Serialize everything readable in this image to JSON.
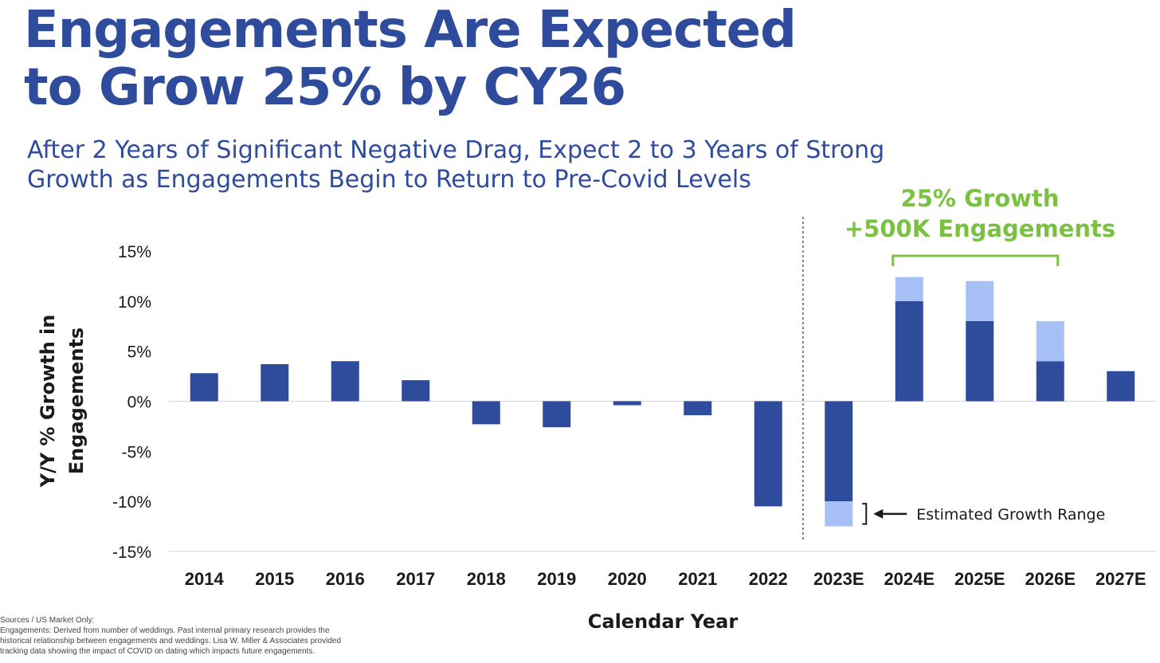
{
  "title_lines": [
    "Engagements Are Expected",
    "to Grow 25% by CY26"
  ],
  "subtitle_lines": [
    "After 2 Years of Significant Negative Drag, Expect 2 to 3 Years of Strong",
    "Growth as Engagements Begin to Return to Pre-Covid Levels"
  ],
  "callout": {
    "line1": "25% Growth",
    "line2": "+500K Engagements"
  },
  "footnote": {
    "line1": "Sources / US Market Only:",
    "line2": "Engagements: Derived from number of weddings. Past internal primary research provides the",
    "line3": "historical relationship between engagements and weddings. Lisa W. Miller & Associates provided",
    "line4": "tracking data showing the impact of COVID on dating which impacts future engagements."
  },
  "colors": {
    "title": "#2e4b9c",
    "bar": "#2e4b9c",
    "range": "#a7c1f7",
    "callout": "#7ac142",
    "grid": "#d4d4d4"
  },
  "chart_data": {
    "type": "bar",
    "xlabel": "Calendar Year",
    "ylabel_lines": [
      "Y/Y % Growth in",
      "Engagements"
    ],
    "ylim": [
      -15,
      15
    ],
    "yticks": [
      15,
      10,
      5,
      0,
      -5,
      -10,
      -15
    ],
    "ytick_labels": [
      "15%",
      "10%",
      "5%",
      "0%",
      "-5%",
      "-10%",
      "-15%"
    ],
    "grid": "horizontal",
    "categories": [
      "2014",
      "2015",
      "2016",
      "2017",
      "2018",
      "2019",
      "2020",
      "2021",
      "2022",
      "2023E",
      "2024E",
      "2025E",
      "2026E",
      "2027E"
    ],
    "series": [
      {
        "values": [
          2.8,
          3.7,
          4.0,
          2.1,
          -2.3,
          -2.6,
          -0.4,
          -1.4,
          -10.5,
          -10.0,
          10.0,
          8.0,
          4.0,
          3.0
        ]
      },
      {
        "name": "Estimated Growth Range",
        "values": [
          0,
          0,
          0,
          0,
          0,
          0,
          0,
          0,
          0,
          -2.5,
          2.4,
          4.0,
          4.0,
          0
        ]
      }
    ],
    "annotation": "Estimated Growth Range",
    "divider_after": "2022"
  }
}
